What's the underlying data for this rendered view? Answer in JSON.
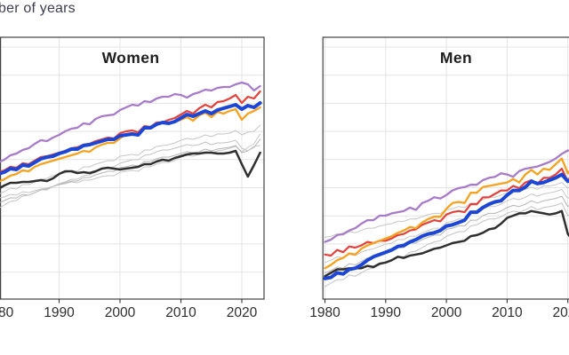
{
  "title_partial": "ber of years",
  "colors": {
    "grid": "#e4e4e4",
    "panel_border": "#414141",
    "tick": "#333333",
    "tick_label": "#2e2e2e",
    "panel_title": "#1e1e1e",
    "main_title": "#3c3c4e",
    "highlight_blue": "#1c46d3",
    "purple": "#a87bc9",
    "red": "#e5413b",
    "orange": "#f6a21f",
    "black": "#2f2f2f",
    "gray_light": "#c7c7c7",
    "gray_mid": "#b5b5b5"
  },
  "x_ticks": {
    "years": [
      1980,
      1990,
      2000,
      2010,
      2020
    ],
    "labels": [
      "1980",
      "1990",
      "2000",
      "2010",
      "2020"
    ]
  },
  "chart_data": {
    "type": "line",
    "title_partial": "ber of years",
    "x_label": "",
    "y_label": "",
    "x_years_start": 1980,
    "x_years_end": 2023,
    "grid": "on",
    "legend": "none",
    "facets": [
      {
        "title": "Women",
        "ylim": [
          63.4,
          92.9
        ],
        "series": [
          {
            "name": "gray1",
            "color": "#c7c7c7",
            "width": 1,
            "values": [
              75.2,
              75.5,
              75.9,
              75.8,
              76.3,
              76.3,
              76.6,
              76.9,
              77.0,
              77.3,
              77.5,
              77.6,
              77.9,
              77.8,
              78.3,
              78.3,
              78.6,
              78.8,
              79.0,
              79.0,
              79.5,
              79.6,
              79.7,
              79.6,
              80.2,
              80.2,
              80.6,
              80.7,
              80.8,
              81.0,
              81.3,
              81.5,
              81.4,
              81.6,
              81.9,
              81.7,
              82.0,
              82.0,
              82.1,
              82.4,
              81.9,
              82.2,
              82.3,
              83.0
            ]
          },
          {
            "name": "gray2",
            "color": "#c7c7c7",
            "width": 1,
            "values": [
              74.8,
              74.9,
              75.2,
              75.1,
              75.5,
              75.4,
              75.6,
              75.8,
              75.9,
              76.1,
              76.3,
              76.4,
              76.6,
              76.5,
              76.8,
              76.8,
              77.0,
              77.2,
              77.3,
              77.3,
              77.7,
              77.8,
              77.9,
              77.8,
              78.3,
              78.3,
              78.6,
              78.8,
              78.8,
              79.0,
              79.4,
              79.6,
              79.5,
              79.7,
              80.0,
              79.8,
              80.1,
              80.2,
              80.4,
              80.6,
              80.0,
              80.5,
              80.9,
              82.0
            ]
          },
          {
            "name": "gray3",
            "color": "#b5b5b5",
            "width": 1,
            "values": [
              74.2,
              74.5,
              74.8,
              74.8,
              75.2,
              75.1,
              75.4,
              75.7,
              75.8,
              76.1,
              76.3,
              76.5,
              76.7,
              76.7,
              77.1,
              77.1,
              77.4,
              77.6,
              77.8,
              77.8,
              78.2,
              78.3,
              78.5,
              78.4,
              78.9,
              78.9,
              79.2,
              79.4,
              79.4,
              79.6,
              79.8,
              80.0,
              79.9,
              80.0,
              80.3,
              80.1,
              80.3,
              80.4,
              80.5,
              80.7,
              79.9,
              80.1,
              80.5,
              81.4
            ]
          },
          {
            "name": "gray4",
            "color": "#c2c2c2",
            "width": 1,
            "values": [
              73.6,
              74.0,
              74.4,
              74.5,
              75.0,
              75.1,
              75.4,
              75.7,
              75.7,
              76.1,
              76.4,
              76.6,
              76.9,
              76.9,
              77.3,
              77.4,
              77.7,
              78.0,
              78.2,
              78.3,
              78.7,
              78.9,
              79.1,
              79.1,
              79.6,
              79.7,
              80.0,
              80.2,
              80.2,
              80.4,
              80.6,
              80.8,
              80.7,
              80.8,
              81.1,
              80.8,
              81.0,
              81.0,
              81.1,
              81.3,
              80.4,
              80.1,
              80.6,
              80.7
            ]
          },
          {
            "name": "black",
            "color": "#2f2f2f",
            "width": 2.5,
            "values": [
              75.8,
              76.2,
              76.5,
              76.5,
              76.6,
              76.6,
              76.7,
              76.8,
              76.7,
              77.0,
              77.5,
              77.8,
              77.8,
              77.6,
              77.7,
              77.6,
              77.8,
              78.1,
              78.2,
              78.1,
              78.0,
              78.1,
              78.2,
              78.3,
              78.6,
              78.6,
              78.9,
              79.1,
              79.0,
              79.3,
              79.5,
              79.7,
              79.8,
              79.8,
              79.9,
              79.9,
              79.8,
              79.8,
              79.9,
              80.1,
              78.6,
              77.2,
              78.5,
              79.9
            ]
          },
          {
            "name": "purple",
            "color": "#a87bc9",
            "width": 2.3,
            "values": [
              78.8,
              79.1,
              79.6,
              79.8,
              80.2,
              80.4,
              80.9,
              81.3,
              81.2,
              81.6,
              81.9,
              82.3,
              82.6,
              82.7,
              83.2,
              83.1,
              83.7,
              84.0,
              84.1,
              84.2,
              84.7,
              85.0,
              85.3,
              85.2,
              85.7,
              85.6,
              86.0,
              86.2,
              86.2,
              86.5,
              86.4,
              86.1,
              86.5,
              86.7,
              87.0,
              86.9,
              87.2,
              87.3,
              87.3,
              87.6,
              87.8,
              87.6,
              86.9,
              87.4
            ]
          },
          {
            "name": "red",
            "color": "#e5413b",
            "width": 2.2,
            "values": [
              77.7,
              77.9,
              78.3,
              78.2,
              78.7,
              78.6,
              79.0,
              79.4,
              79.5,
              79.7,
              79.9,
              80.1,
              80.4,
              80.5,
              80.8,
              80.9,
              81.2,
              81.4,
              81.6,
              81.5,
              82.1,
              82.3,
              82.4,
              82.2,
              82.9,
              82.8,
              83.3,
              83.3,
              83.6,
              83.8,
              84.2,
              84.6,
              84.3,
              84.9,
              85.3,
              85.0,
              85.6,
              85.7,
              86.0,
              86.4,
              85.5,
              86.2,
              86.0,
              86.8
            ]
          },
          {
            "name": "orange",
            "color": "#f6a21f",
            "width": 2.3,
            "values": [
              76.6,
              76.9,
              77.3,
              77.5,
              77.9,
              77.8,
              78.3,
              78.6,
              78.8,
              79.0,
              79.2,
              79.4,
              79.6,
              79.8,
              80.1,
              80.0,
              80.5,
              80.8,
              81.0,
              81.0,
              81.5,
              82.0,
              82.1,
              82.0,
              82.8,
              82.8,
              83.2,
              83.3,
              83.3,
              83.4,
              83.6,
              83.9,
              83.5,
              84.1,
              84.4,
              83.9,
              84.5,
              84.3,
              84.6,
              84.8,
              83.6,
              84.3,
              84.6,
              85.0
            ]
          },
          {
            "name": "blue-bold",
            "color": "#1c46d3",
            "width": 4,
            "values": [
              77.5,
              77.7,
              78.1,
              78.0,
              78.5,
              78.4,
              78.8,
              79.2,
              79.4,
              79.5,
              79.8,
              80.0,
              80.3,
              80.3,
              80.7,
              80.8,
              81.0,
              81.2,
              81.4,
              81.4,
              81.8,
              81.9,
              82.0,
              81.9,
              82.7,
              82.7,
              83.1,
              83.3,
              83.2,
              83.4,
              83.8,
              84.2,
              84.0,
              84.3,
              84.6,
              84.3,
              84.7,
              84.9,
              85.1,
              85.3,
              84.8,
              85.2,
              85.0,
              85.5
            ]
          }
        ]
      },
      {
        "title": "Men",
        "ylim": [
          68.6,
          91.5
        ],
        "series": [
          {
            "name": "gray1",
            "color": "#c7c7c7",
            "width": 1,
            "values": [
              74.0,
              74.1,
              74.3,
              74.2,
              74.5,
              74.4,
              74.6,
              74.8,
              74.8,
              75.0,
              75.1,
              75.2,
              75.4,
              75.4,
              75.6,
              75.6,
              75.8,
              76.0,
              76.1,
              76.1,
              76.4,
              76.5,
              76.7,
              76.6,
              77.0,
              77.0,
              77.3,
              77.5,
              77.5,
              77.7,
              77.9,
              78.1,
              78.0,
              78.2,
              78.4,
              78.2,
              78.5,
              78.5,
              78.6,
              78.8,
              78.3,
              78.6,
              78.9,
              79.4
            ]
          },
          {
            "name": "gray2",
            "color": "#c7c7c7",
            "width": 1,
            "values": [
              71.8,
              72.0,
              72.3,
              72.2,
              72.5,
              72.4,
              72.7,
              72.9,
              73.0,
              73.2,
              73.4,
              73.5,
              73.8,
              73.8,
              74.1,
              74.1,
              74.4,
              74.6,
              74.8,
              74.8,
              75.3,
              75.4,
              75.6,
              75.6,
              76.1,
              76.1,
              76.5,
              76.7,
              76.7,
              76.9,
              77.2,
              77.4,
              77.3,
              77.5,
              77.8,
              77.6,
              77.8,
              77.9,
              78.0,
              78.2,
              77.4,
              77.8,
              78.2,
              78.8
            ]
          },
          {
            "name": "gray3",
            "color": "#b5b5b5",
            "width": 1,
            "values": [
              70.9,
              71.1,
              71.4,
              71.3,
              71.7,
              71.6,
              71.9,
              72.2,
              72.3,
              72.5,
              72.7,
              72.9,
              73.1,
              73.1,
              73.5,
              73.5,
              73.8,
              74.0,
              74.2,
              74.2,
              74.7,
              74.8,
              75.0,
              75.0,
              75.5,
              75.5,
              75.9,
              76.1,
              76.1,
              76.3,
              76.6,
              76.8,
              76.7,
              76.9,
              77.2,
              77.0,
              77.2,
              77.3,
              77.4,
              77.6,
              76.7,
              77.1,
              77.5,
              78.1
            ]
          },
          {
            "name": "gray4",
            "color": "#c2c2c2",
            "width": 1,
            "values": [
              69.7,
              70.0,
              70.3,
              70.3,
              70.7,
              70.6,
              70.9,
              71.2,
              71.3,
              71.6,
              71.8,
              72.0,
              72.3,
              72.3,
              72.7,
              72.8,
              73.1,
              73.4,
              73.6,
              73.7,
              74.1,
              74.3,
              74.5,
              74.5,
              75.0,
              75.1,
              75.4,
              75.6,
              75.6,
              75.8,
              76.1,
              76.3,
              76.2,
              76.4,
              76.7,
              76.4,
              76.6,
              76.7,
              76.8,
              77.0,
              75.9,
              76.2,
              76.7,
              77.3
            ]
          },
          {
            "name": "black",
            "color": "#2f2f2f",
            "width": 2.5,
            "values": [
              70.6,
              70.9,
              71.2,
              71.2,
              71.3,
              71.3,
              71.3,
              71.5,
              71.4,
              71.7,
              71.8,
              72.0,
              72.3,
              72.2,
              72.4,
              72.5,
              72.6,
              72.8,
              73.0,
              73.1,
              73.3,
              73.5,
              73.6,
              73.7,
              74.1,
              74.2,
              74.4,
              74.7,
              74.8,
              75.2,
              75.7,
              75.9,
              76.1,
              76.1,
              76.3,
              76.2,
              76.1,
              76.0,
              76.1,
              76.3,
              74.3,
              73.6,
              74.9,
              75.9
            ]
          },
          {
            "name": "purple",
            "color": "#a87bc9",
            "width": 2.3,
            "values": [
              73.6,
              73.8,
              74.2,
              74.3,
              74.6,
              74.8,
              75.2,
              75.5,
              75.5,
              75.9,
              75.9,
              76.1,
              76.2,
              76.3,
              76.6,
              76.4,
              77.0,
              77.2,
              77.5,
              77.4,
              77.7,
              78.1,
              78.3,
              78.4,
              78.6,
              78.6,
              79.0,
              79.2,
              79.3,
              79.6,
              79.5,
              79.3,
              79.8,
              80.0,
              80.1,
              80.2,
              80.4,
              80.6,
              80.9,
              81.3,
              81.6,
              81.5,
              81.1,
              81.4
            ]
          },
          {
            "name": "red",
            "color": "#e5413b",
            "width": 2.2,
            "values": [
              72.5,
              72.4,
              72.9,
              72.7,
              73.2,
              73.1,
              73.3,
              73.6,
              73.5,
              73.7,
              73.7,
              73.9,
              74.2,
              74.3,
              74.6,
              74.7,
              75.1,
              75.3,
              75.5,
              75.4,
              76.0,
              76.2,
              76.3,
              76.2,
              76.9,
              76.9,
              77.5,
              77.5,
              77.8,
              78.1,
              78.1,
              78.5,
              78.3,
              78.8,
              79.0,
              78.7,
              79.2,
              79.2,
              79.5,
              80.0,
              78.9,
              79.9,
              79.8,
              80.6
            ]
          },
          {
            "name": "orange",
            "color": "#f6a21f",
            "width": 2.3,
            "values": [
              71.3,
              71.6,
              72.0,
              72.2,
              72.6,
              72.5,
              73.0,
              73.3,
              73.5,
              73.7,
              73.9,
              74.1,
              74.4,
              74.6,
              74.9,
              74.8,
              75.3,
              75.6,
              75.8,
              75.8,
              76.5,
              77.0,
              77.1,
              77.0,
              77.9,
              77.9,
              78.4,
              78.5,
              78.6,
              78.7,
              78.8,
              79.1,
              78.8,
              79.5,
              79.9,
              79.5,
              80.0,
              79.9,
              80.4,
              80.9,
              79.6,
              80.2,
              80.6,
              81.0
            ]
          },
          {
            "name": "blue-bold",
            "color": "#1c46d3",
            "width": 4,
            "values": [
              70.4,
              70.5,
              70.9,
              70.8,
              71.2,
              71.3,
              71.6,
              72.0,
              72.3,
              72.5,
              72.7,
              72.9,
              73.2,
              73.3,
              73.6,
              73.8,
              74.1,
              74.3,
              74.4,
              74.6,
              75.0,
              75.1,
              75.3,
              75.5,
              76.2,
              76.2,
              76.6,
              76.9,
              77.1,
              77.2,
              77.7,
              78.1,
              78.1,
              78.4,
              78.9,
              78.7,
              78.8,
              79.0,
              79.2,
              79.5,
              78.9,
              79.1,
              79.0,
              79.6
            ]
          }
        ]
      }
    ]
  }
}
